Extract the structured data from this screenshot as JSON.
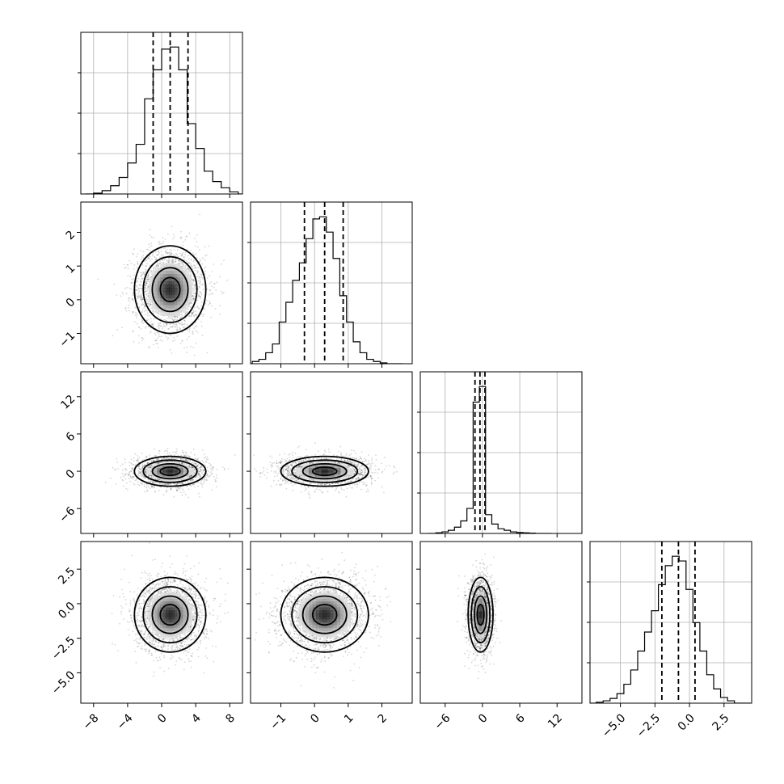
{
  "chart_data": {
    "type": "corner",
    "description_note": "",
    "variables": [
      {
        "index": 0,
        "xlim": [
          -9.5,
          9.5
        ],
        "ticks": [
          -8,
          -4,
          0,
          4,
          8
        ],
        "tick_labels": [
          "−8",
          "−4",
          "0",
          "4",
          "8"
        ],
        "quantiles": [
          -1.0,
          1.0,
          3.1
        ]
      },
      {
        "index": 1,
        "ylim": [
          -1.9,
          2.9
        ],
        "xlim": [
          -1.9,
          2.9
        ],
        "ticks": [
          -1,
          0,
          1,
          2
        ],
        "tick_labels": [
          "−1",
          "0",
          "1",
          "2"
        ],
        "quantiles": [
          -0.3,
          0.3,
          0.85
        ]
      },
      {
        "index": 2,
        "ylim": [
          -10.0,
          16.0
        ],
        "xlim": [
          -10.0,
          16.0
        ],
        "ticks": [
          -6,
          0,
          6,
          12
        ],
        "tick_labels": [
          "−6",
          "0",
          "6",
          "12"
        ],
        "quantiles": [
          -1.2,
          -0.4,
          0.4
        ]
      },
      {
        "index": 3,
        "ylim": [
          -7.2,
          4.5
        ],
        "xlim": [
          -7.2,
          4.5
        ],
        "ticks": [
          -5.0,
          -2.5,
          0.0,
          2.5
        ],
        "tick_labels": [
          "−5.0",
          "−2.5",
          "0.0",
          "2.5"
        ],
        "quantiles": [
          -2.0,
          -0.8,
          0.4
        ]
      }
    ],
    "histograms": [
      {
        "var": 0,
        "bin_centers": [
          -7.5,
          -6.5,
          -5.5,
          -4.5,
          -3.5,
          -2.5,
          -1.5,
          -0.5,
          0.5,
          1.5,
          2.5,
          3.5,
          4.5,
          5.5,
          6.5,
          7.5,
          8.5
        ],
        "counts": [
          2,
          8,
          20,
          40,
          75,
          120,
          230,
          300,
          350,
          355,
          300,
          170,
          110,
          55,
          30,
          15,
          5
        ]
      },
      {
        "var": 1,
        "bin_centers": [
          -1.75,
          -1.55,
          -1.35,
          -1.15,
          -0.95,
          -0.75,
          -0.55,
          -0.35,
          -0.15,
          0.05,
          0.25,
          0.45,
          0.65,
          0.85,
          1.05,
          1.25,
          1.45,
          1.65,
          1.85,
          2.05
        ],
        "counts": [
          5,
          10,
          25,
          45,
          95,
          140,
          190,
          230,
          285,
          330,
          335,
          300,
          240,
          155,
          95,
          50,
          25,
          10,
          5,
          2
        ]
      },
      {
        "var": 2,
        "bin_centers": [
          -7,
          -6,
          -5,
          -4,
          -3,
          -2,
          -1,
          0,
          1,
          2,
          3,
          4,
          5,
          6,
          7,
          8
        ],
        "counts": [
          2,
          5,
          10,
          20,
          40,
          80,
          420,
          470,
          60,
          30,
          15,
          10,
          5,
          3,
          2,
          1
        ]
      },
      {
        "var": 3,
        "bin_centers": [
          -6.5,
          -6.0,
          -5.5,
          -5.0,
          -4.5,
          -4.0,
          -3.5,
          -3.0,
          -2.5,
          -2.0,
          -1.5,
          -1.0,
          -0.5,
          0.0,
          0.5,
          1.0,
          1.5,
          2.0,
          2.5,
          3.0
        ],
        "counts": [
          2,
          5,
          10,
          20,
          40,
          70,
          110,
          150,
          195,
          250,
          290,
          310,
          300,
          240,
          170,
          110,
          60,
          30,
          12,
          5
        ]
      }
    ],
    "pairs": [
      {
        "row": 1,
        "col": 0,
        "x_center": 1.0,
        "y_center": 0.3,
        "x_sigma": 2.1,
        "y_sigma": 0.65,
        "rho": 0.0
      },
      {
        "row": 2,
        "col": 0,
        "x_center": 1.0,
        "y_center": 0.0,
        "x_sigma": 2.1,
        "y_sigma": 1.2,
        "rho": 0.0
      },
      {
        "row": 2,
        "col": 1,
        "x_center": 0.3,
        "y_center": 0.0,
        "x_sigma": 0.65,
        "y_sigma": 1.2,
        "rho": 0.0
      },
      {
        "row": 3,
        "col": 0,
        "x_center": 1.0,
        "y_center": -0.8,
        "x_sigma": 2.1,
        "y_sigma": 1.35,
        "rho": 0.0
      },
      {
        "row": 3,
        "col": 1,
        "x_center": 0.3,
        "y_center": -0.8,
        "x_sigma": 0.65,
        "y_sigma": 1.35,
        "rho": 0.1
      },
      {
        "row": 3,
        "col": 2,
        "x_center": -0.3,
        "y_center": -0.8,
        "x_sigma": 1.0,
        "y_sigma": 1.35,
        "rho": 0.0
      }
    ],
    "grid": true
  }
}
